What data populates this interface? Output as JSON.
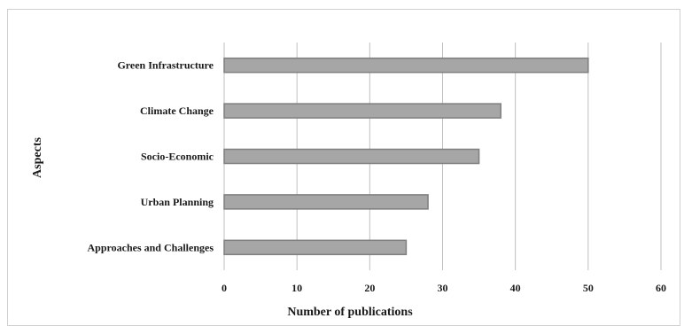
{
  "chart_data": {
    "type": "bar",
    "orientation": "horizontal",
    "title": "",
    "xlabel": "Number of publications",
    "ylabel": "Aspects",
    "categories": [
      "Green Infrastructure",
      "Climate Change",
      "Socio-Economic",
      "Urban Planning",
      "Approaches and Challenges"
    ],
    "values": [
      50,
      38,
      35,
      28,
      25
    ],
    "xlim": [
      0,
      60
    ],
    "xticks": [
      "0",
      "10",
      "20",
      "30",
      "40",
      "50",
      "60"
    ],
    "grid": "vertical",
    "legend": "none",
    "bar_color": "#a6a6a6",
    "bar_edge_color": "#7f7f7f",
    "grid_color": "#bfbfbf"
  }
}
